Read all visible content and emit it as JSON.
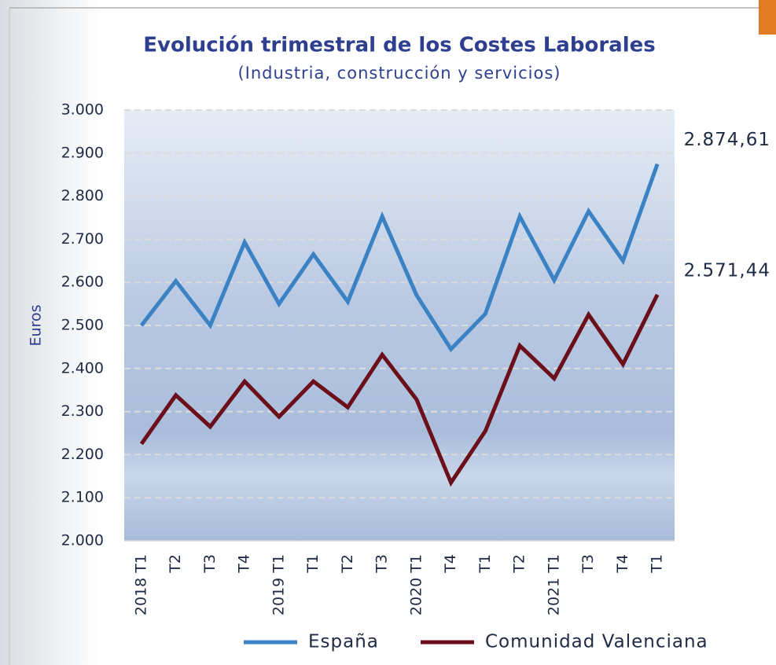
{
  "chart_data": {
    "type": "line",
    "title": "Evolución trimestral de los Costes Laborales",
    "subtitle": "(Industria, construcción y servicios)",
    "y_label": "Euros",
    "categories": [
      "2018 T1",
      "T2",
      "T3",
      "T4",
      "2019 T1",
      "T1",
      "T2",
      "T3",
      "2020 T1",
      "T4",
      "T1",
      "T2",
      "2021 T1",
      "T3",
      "T4",
      "T1"
    ],
    "series": [
      {
        "name": "España",
        "color": "#3b82c4",
        "values": [
          2500,
          2603,
          2500,
          2693,
          2550,
          2665,
          2555,
          2753,
          2570,
          2445,
          2527,
          2753,
          2605,
          2765,
          2650,
          2874.61
        ],
        "value_labels": [
          null,
          null,
          null,
          null,
          null,
          null,
          null,
          null,
          null,
          null,
          null,
          null,
          null,
          null,
          null,
          "2.874,61"
        ]
      },
      {
        "name": "Comunidad Valenciana",
        "color": "#6b0f1a",
        "values": [
          2225,
          2338,
          2265,
          2370,
          2288,
          2370,
          2310,
          2432,
          2328,
          2135,
          2255,
          2453,
          2377,
          2525,
          2410,
          2571.44
        ],
        "value_labels": [
          null,
          null,
          null,
          null,
          null,
          null,
          null,
          null,
          null,
          null,
          null,
          null,
          null,
          null,
          null,
          "2.571,44"
        ]
      }
    ],
    "ylim": [
      2000,
      3000
    ],
    "yticks": [
      {
        "value": 2000,
        "label": "2.000"
      },
      {
        "value": 2100,
        "label": "2.100"
      },
      {
        "value": 2200,
        "label": "2.200"
      },
      {
        "value": 2300,
        "label": "2.300"
      },
      {
        "value": 2400,
        "label": "2.400"
      },
      {
        "value": 2500,
        "label": "2.500"
      },
      {
        "value": 2600,
        "label": "2.600"
      },
      {
        "value": 2700,
        "label": "2.700"
      },
      {
        "value": 2800,
        "label": "2.800"
      },
      {
        "value": 2900,
        "label": "2.900"
      },
      {
        "value": 3000,
        "label": "3.000"
      }
    ],
    "grid": true
  }
}
